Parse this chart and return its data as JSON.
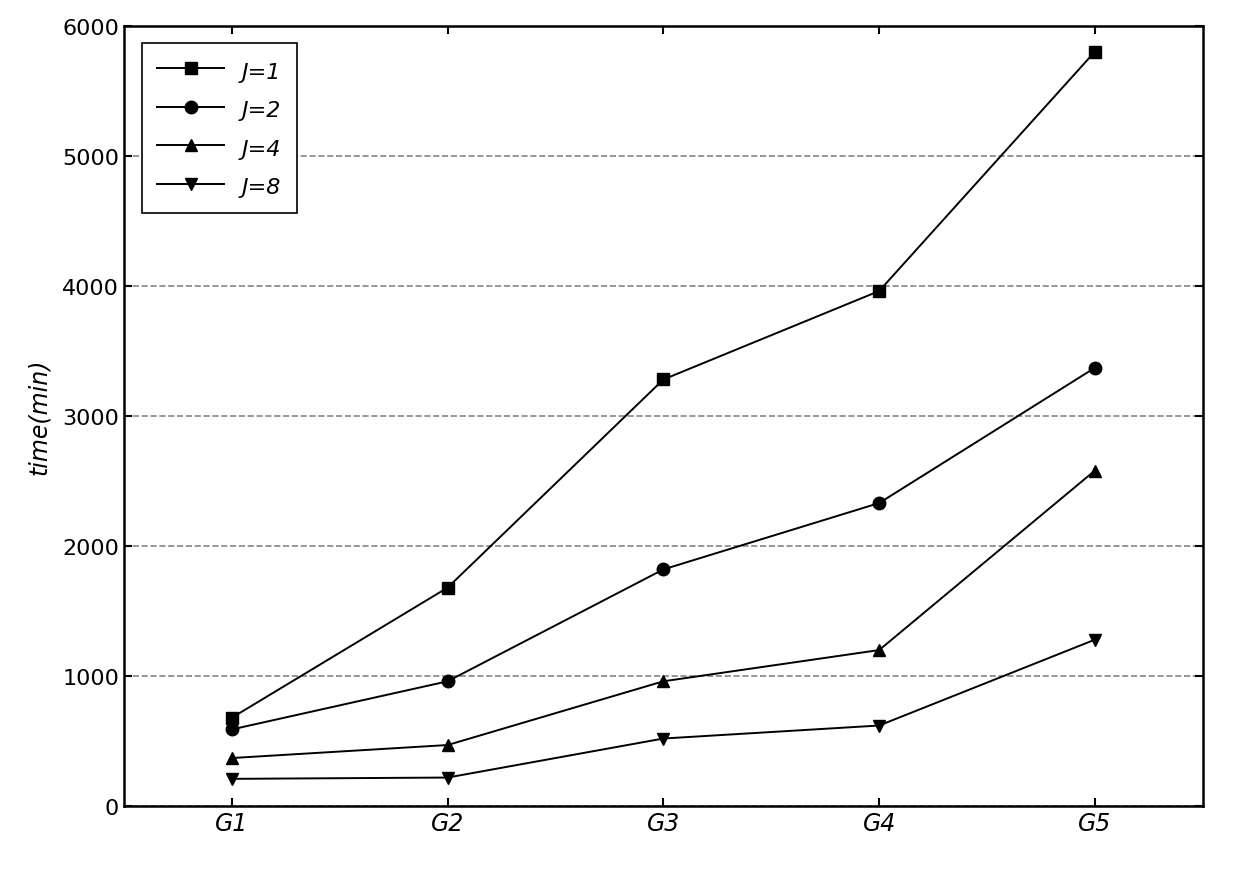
{
  "x_labels": [
    "G1",
    "G2",
    "G3",
    "G4",
    "G5"
  ],
  "x_values": [
    1,
    2,
    3,
    4,
    5
  ],
  "series": [
    {
      "label": "J=1",
      "values": [
        680,
        1680,
        3280,
        3960,
        5800
      ],
      "marker": "s",
      "color": "#000000",
      "markersize": 9
    },
    {
      "label": "J=2",
      "values": [
        590,
        960,
        1820,
        2330,
        3370
      ],
      "marker": "o",
      "color": "#000000",
      "markersize": 9
    },
    {
      "label": "J=4",
      "values": [
        370,
        470,
        960,
        1200,
        2580
      ],
      "marker": "^",
      "color": "#000000",
      "markersize": 9
    },
    {
      "label": "J=8",
      "values": [
        210,
        220,
        520,
        620,
        1280
      ],
      "marker": "v",
      "color": "#000000",
      "markersize": 9
    }
  ],
  "ylabel": "time(min)",
  "ylim": [
    0,
    6000
  ],
  "yticks": [
    0,
    1000,
    2000,
    3000,
    4000,
    5000,
    6000
  ],
  "grid_linestyle": "--",
  "grid_linewidth": 1.2,
  "grid_color": "#666666",
  "background_color": "#ffffff",
  "legend_loc": "upper left",
  "linewidth": 1.4,
  "xlabel_fontsize": 17,
  "ylabel_fontsize": 17,
  "tick_fontsize": 16,
  "legend_fontsize": 16,
  "figwidth": 12.4,
  "figheight": 8.87,
  "dpi": 100
}
